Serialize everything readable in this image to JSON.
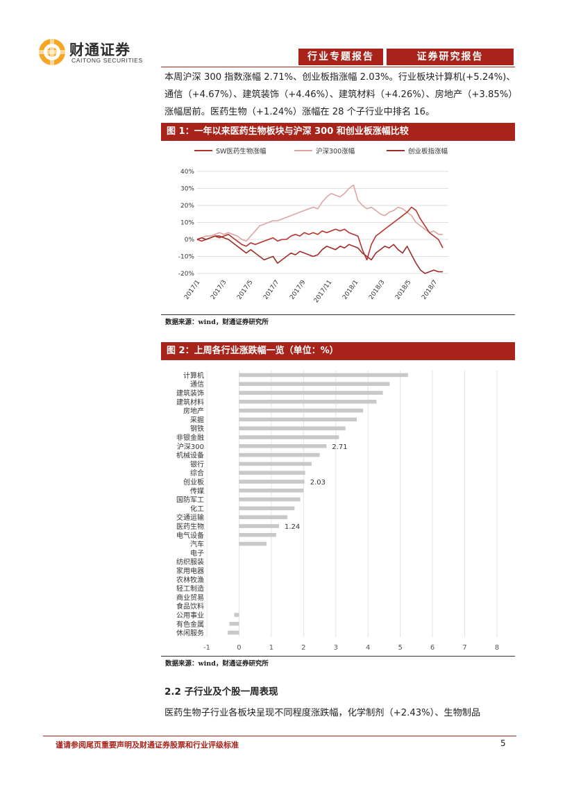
{
  "header": {
    "logo_cn": "财通证券",
    "logo_en": "CAITONG SECURITIES",
    "tag1": "行业专题报告",
    "tag2": "证券研究报告"
  },
  "intro_lines": [
    "本周沪深 300 指数涨幅 2.71%、创业板指涨幅 2.03%。行业板块计算机(+5.24%)、",
    "通信（+4.67%）、建筑装饰（+4.46%）、建筑材料（+4.26%）、房地产（+3.85%）",
    "涨幅居前。医药生物（+1.24%）涨幅在 28 个子行业中排名 16。"
  ],
  "figure1": {
    "title": "图 1：一年以来医药生物板块与沪深 300 和创业板涨幅比较",
    "source": "数据来源：wind，财通证券研究所"
  },
  "figure2": {
    "title": "图 2：上周各行业涨跌幅一览（单位：%）",
    "source": "数据来源：wind，财通证券研究所"
  },
  "section": {
    "heading": "2.2  子行业及个股一周表现",
    "line": "医药生物子行业各板块呈现不同程度涨跌幅，化学制剂（+2.43%）、生物制品"
  },
  "footer": {
    "disclaimer": "谨请参阅尾页重要声明及财通证券股票和行业评级标准",
    "page": "5"
  },
  "colors": {
    "brand_red": "#a8241b",
    "sw_med": "#b8302c",
    "hs300": "#dea4a0",
    "chinext": "#9c2b28",
    "bar": "#c8c8c8"
  },
  "chart_data": [
    {
      "type": "line",
      "legend_position": "top",
      "grid": true,
      "ylim": [
        -20,
        40
      ],
      "yticks": [
        "40%",
        "30%",
        "20%",
        "10%",
        "0%",
        "-10%",
        "-20%"
      ],
      "xticks": [
        "2017/1",
        "2017/3",
        "2017/5",
        "2017/7",
        "2017/9",
        "2017/11",
        "2018/1",
        "2018/3",
        "2018/5",
        "2018/7"
      ],
      "series": [
        {
          "name": "SW医药生物涨幅",
          "color": "#b8302c",
          "values": [
            0,
            -1,
            0,
            1,
            2,
            1,
            2,
            3,
            1,
            -1,
            -3,
            -4,
            -2,
            -3,
            -2,
            -1,
            0,
            1,
            -1,
            0,
            0,
            2,
            3,
            2,
            4,
            3,
            4,
            3,
            5,
            4,
            5,
            6,
            5,
            6,
            4,
            3,
            2,
            -6,
            -12,
            -3,
            2,
            4,
            6,
            8,
            10,
            12,
            14,
            16,
            19,
            17,
            12,
            8,
            4,
            2,
            0,
            -5
          ]
        },
        {
          "name": "沪深300涨幅",
          "color": "#dea4a0",
          "values": [
            0,
            1,
            2,
            2,
            3,
            4,
            3,
            4,
            3,
            2,
            0,
            -1,
            2,
            5,
            8,
            9,
            10,
            11,
            11,
            12,
            13,
            14,
            15,
            16,
            17,
            18,
            19,
            18,
            22,
            25,
            27,
            26,
            25,
            27,
            30,
            32,
            23,
            20,
            18,
            19,
            17,
            15,
            14,
            16,
            17,
            19,
            18,
            16,
            14,
            10,
            8,
            6,
            4,
            5,
            3,
            3
          ]
        },
        {
          "name": "创业板指涨幅",
          "color": "#9c2b28",
          "values": [
            0,
            1,
            0,
            1,
            2,
            2,
            1,
            0,
            -2,
            -4,
            -6,
            -8,
            -6,
            -8,
            -10,
            -12,
            -11,
            -10,
            -14,
            -12,
            -10,
            -8,
            -9,
            -7,
            -8,
            -9,
            -10,
            -9,
            -6,
            -4,
            -5,
            -6,
            -4,
            -5,
            -3,
            -4,
            -5,
            -8,
            -10,
            -12,
            -8,
            -6,
            -4,
            -5,
            -3,
            -6,
            -8,
            -4,
            -9,
            -14,
            -18,
            -20,
            -19,
            -18,
            -19,
            -19
          ]
        }
      ]
    },
    {
      "type": "bar",
      "orientation": "horizontal",
      "xlim": [
        -1,
        8
      ],
      "xticks": [
        "-1",
        "0",
        "1",
        "2",
        "3",
        "4",
        "5",
        "6",
        "7",
        "8"
      ],
      "grid": true,
      "categories": [
        "计算机",
        "通信",
        "建筑装饰",
        "建筑材料",
        "房地产",
        "采掘",
        "钢铁",
        "非银金融",
        "沪深300",
        "机械设备",
        "银行",
        "综合",
        "创业板",
        "传媒",
        "国防军工",
        "化工",
        "交通运输",
        "医药生物",
        "电气设备",
        "汽车",
        "电子",
        "纺织服装",
        "家用电器",
        "农林牧渔",
        "轻工制造",
        "商业贸易",
        "食品饮料",
        "公用事业",
        "有色金属",
        "休闲服务"
      ],
      "values": [
        5.24,
        4.67,
        4.46,
        4.26,
        3.85,
        3.65,
        3.3,
        3.1,
        2.71,
        2.5,
        2.25,
        2.05,
        2.03,
        2.0,
        1.9,
        1.72,
        1.5,
        1.24,
        1.15,
        0.85,
        0,
        0,
        0,
        0,
        0,
        0,
        0,
        -0.15,
        -0.3,
        -0.35
      ],
      "data_labels": {
        "沪深300": "2.71",
        "创业板": "2.03",
        "医药生物": "1.24"
      }
    }
  ]
}
